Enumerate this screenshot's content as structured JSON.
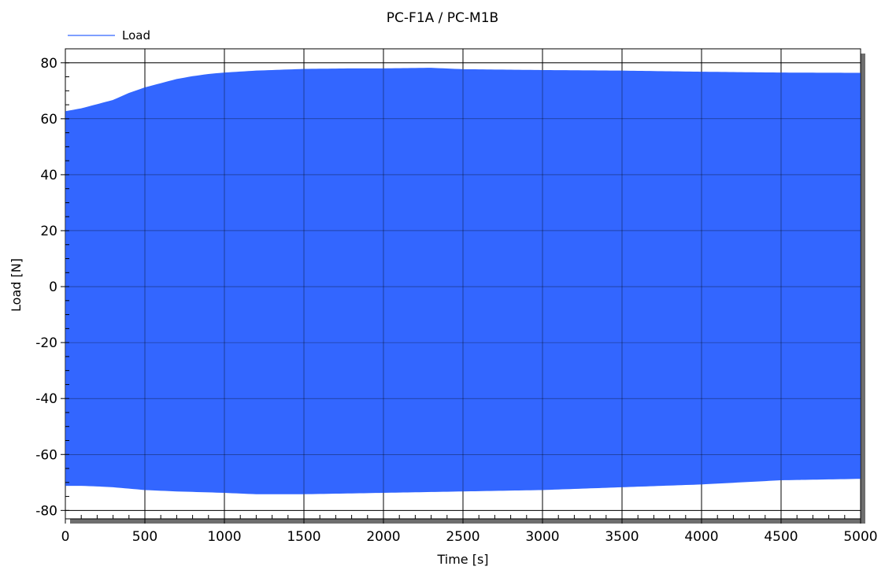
{
  "chart_data": {
    "type": "line",
    "title": "PC-F1A / PC-M1B",
    "xlabel": "Time [s]",
    "ylabel": "Load [N]",
    "xlim": [
      0,
      5000
    ],
    "ylim": [
      -83,
      85
    ],
    "x_ticks": [
      0,
      500,
      1000,
      1500,
      2000,
      2500,
      3000,
      3500,
      4000,
      4500,
      5000
    ],
    "y_ticks": [
      -80,
      -60,
      -40,
      -20,
      0,
      20,
      40,
      60,
      80
    ],
    "grid": true,
    "legend": {
      "position": "top-left",
      "entries": [
        "Load"
      ]
    },
    "series": [
      {
        "name": "Load",
        "color": "#3366ff",
        "cycle_period_s": 12,
        "upper_envelope": {
          "x": [
            0,
            100,
            200,
            300,
            400,
            500,
            600,
            700,
            800,
            900,
            1000,
            1200,
            1500,
            1800,
            2000,
            2300,
            2500,
            3000,
            3500,
            4000,
            4500,
            5000
          ],
          "y": [
            62.5,
            63.5,
            65,
            66.5,
            69,
            71,
            72.5,
            74,
            75,
            75.8,
            76.3,
            77,
            77.6,
            77.8,
            77.8,
            78,
            77.5,
            77.2,
            77,
            76.6,
            76.3,
            76.2
          ]
        },
        "lower_envelope": {
          "x": [
            0,
            100,
            200,
            300,
            400,
            500,
            700,
            1000,
            1200,
            1500,
            2000,
            2500,
            3000,
            3500,
            4000,
            4500,
            5000
          ],
          "y": [
            -71,
            -71,
            -71.2,
            -71.5,
            -72,
            -72.5,
            -73,
            -73.5,
            -74,
            -74,
            -73.5,
            -73,
            -72.5,
            -71.5,
            -70.5,
            -69,
            -68.5
          ]
        }
      }
    ]
  }
}
